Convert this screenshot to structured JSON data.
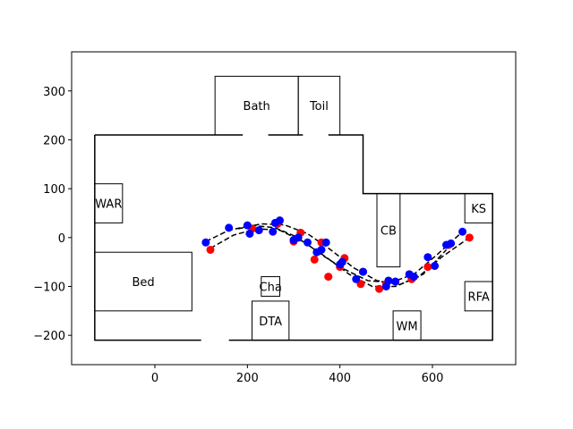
{
  "chart_data": {
    "type": "scatter",
    "title": "",
    "xlabel": "",
    "ylabel": "",
    "xlim": [
      -180,
      780
    ],
    "ylim": [
      -260,
      380
    ],
    "xticks": [
      0,
      200,
      400,
      600
    ],
    "yticks": [
      -200,
      -100,
      0,
      100,
      200,
      300
    ],
    "grid": false,
    "floorplan_outline": [
      [
        -130,
        210
      ],
      [
        450,
        210
      ],
      [
        450,
        90
      ],
      [
        730,
        90
      ],
      [
        730,
        -210
      ],
      [
        -130,
        -210
      ],
      [
        -130,
        210
      ]
    ],
    "doors": [
      {
        "x1": 190,
        "y1": 210,
        "x2": 245,
        "y2": 210
      },
      {
        "x1": 320,
        "y1": 210,
        "x2": 375,
        "y2": 210
      },
      {
        "x1": 100,
        "y1": -210,
        "x2": 160,
        "y2": -210
      }
    ],
    "rooms": [
      {
        "label": "Bath",
        "x0": 130,
        "y0": 210,
        "x1": 310,
        "y1": 330
      },
      {
        "label": "Toil",
        "x0": 310,
        "y0": 210,
        "x1": 400,
        "y1": 330
      },
      {
        "label": "WAR",
        "x0": -130,
        "y0": 30,
        "x1": -70,
        "y1": 110
      },
      {
        "label": "Bed",
        "x0": -130,
        "y0": -150,
        "x1": 80,
        "y1": -30
      },
      {
        "label": "Cha",
        "x0": 230,
        "y0": -120,
        "x1": 270,
        "y1": -80
      },
      {
        "label": "DTA",
        "x0": 210,
        "y0": -210,
        "x1": 290,
        "y1": -130
      },
      {
        "label": "CB",
        "x0": 480,
        "y0": -60,
        "x1": 530,
        "y1": 90
      },
      {
        "label": "KS",
        "x0": 670,
        "y0": 30,
        "x1": 730,
        "y1": 90
      },
      {
        "label": "RFA",
        "x0": 670,
        "y0": -150,
        "x1": 730,
        "y1": -90
      },
      {
        "label": "WM",
        "x0": 515,
        "y0": -210,
        "x1": 575,
        "y1": -150
      }
    ],
    "series": [
      {
        "color": "#ff0000",
        "x": [
          120,
          210,
          265,
          300,
          315,
          345,
          360,
          375,
          400,
          410,
          445,
          450,
          485,
          500,
          555,
          590,
          635,
          680
        ],
        "y": [
          -25,
          18,
          28,
          -8,
          10,
          -45,
          -10,
          -80,
          -60,
          -42,
          -95,
          -70,
          -105,
          -95,
          -85,
          -60,
          -15,
          0
        ]
      },
      {
        "color": "#0000ff",
        "x": [
          110,
          160,
          200,
          205,
          225,
          255,
          260,
          270,
          300,
          310,
          330,
          350,
          360,
          370,
          400,
          405,
          435,
          450,
          500,
          505,
          520,
          550,
          560,
          590,
          605,
          630,
          640,
          665
        ],
        "y": [
          -10,
          20,
          25,
          8,
          15,
          12,
          30,
          35,
          -5,
          0,
          -10,
          -30,
          -25,
          -10,
          -55,
          -50,
          -85,
          -70,
          -100,
          -88,
          -90,
          -75,
          -80,
          -40,
          -58,
          -15,
          -12,
          12
        ]
      }
    ],
    "trajectories": [
      {
        "x": [
          110,
          160,
          210,
          260,
          310,
          360,
          410,
          460,
          510,
          560,
          610,
          665
        ],
        "y": [
          -8,
          15,
          25,
          20,
          0,
          -35,
          -65,
          -88,
          -92,
          -75,
          -35,
          12
        ]
      },
      {
        "x": [
          120,
          170,
          220,
          270,
          320,
          370,
          420,
          470,
          520,
          570,
          620,
          680
        ],
        "y": [
          -22,
          5,
          18,
          15,
          -8,
          -40,
          -75,
          -100,
          -100,
          -80,
          -40,
          0
        ]
      },
      {
        "x": [
          180,
          230,
          280,
          330,
          380,
          430,
          480,
          530,
          580,
          630
        ],
        "y": [
          18,
          28,
          26,
          8,
          -25,
          -62,
          -88,
          -96,
          -75,
          -25
        ]
      }
    ]
  }
}
